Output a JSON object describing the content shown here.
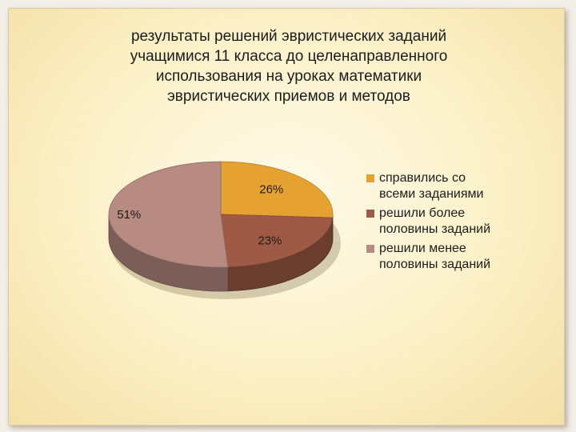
{
  "chart_data": {
    "type": "pie",
    "title_lines": [
      "результаты решений эвристических заданий",
      "учащимися 11 класса до целенаправленного",
      "использования на уроках математики",
      "эвристических приемов и методов"
    ],
    "series": [
      {
        "name": "справились со всеми заданиями",
        "legend_lines": [
          "справились со",
          "всеми заданиями"
        ],
        "value": 26,
        "label": "26%",
        "color": "#e6a231"
      },
      {
        "name": "решили более половины заданий",
        "legend_lines": [
          "решили более",
          "половины заданий"
        ],
        "value": 23,
        "label": "23%",
        "color": "#9e5a44"
      },
      {
        "name": "решили менее половины заданий",
        "legend_lines": [
          "решили менее",
          "половины заданий"
        ],
        "value": 51,
        "label": "51%",
        "color": "#b78a82"
      }
    ],
    "legend_position": "right",
    "style": "3d"
  }
}
